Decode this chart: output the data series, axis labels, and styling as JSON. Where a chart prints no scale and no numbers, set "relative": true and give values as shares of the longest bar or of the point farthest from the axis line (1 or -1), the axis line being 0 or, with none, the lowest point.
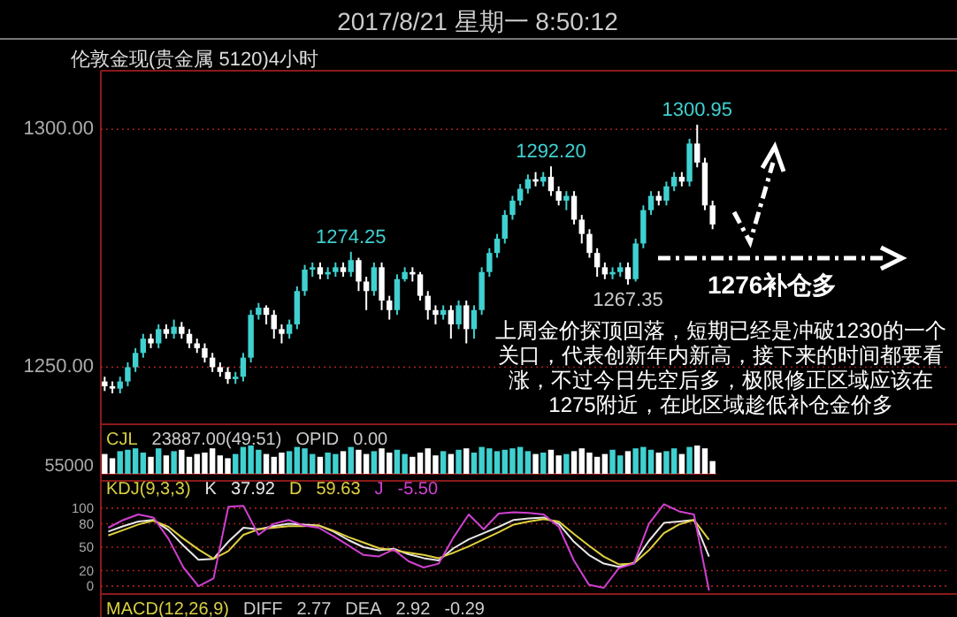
{
  "chart_data": [
    {
      "type": "candlestick",
      "title": "伦敦金现(贵金属 5120)4小时",
      "annotations": [
        "2017/8/21 星期一 8:50:12",
        {
          "text": "1274.25",
          "y": 1274.25
        },
        {
          "text": "1292.20",
          "y": 1292.2
        },
        {
          "text": "1267.35",
          "y": 1267.35
        },
        {
          "text": "1300.95",
          "y": 1300.95
        },
        "1276补仓多",
        "上周金价探顶回落，短期已经是冲破1230的一个关口，代表创新年内新高，接下来的时间都要看涨，不过今日先空后多，极限修正区域应该在1275附近，在此区域趁低补仓金价多"
      ],
      "categories": [
        null,
        null,
        null,
        null,
        null,
        null,
        null,
        null,
        null,
        null,
        null,
        null,
        null,
        null,
        null,
        null,
        null,
        null,
        null,
        null,
        null,
        null,
        null,
        null,
        null,
        null,
        null,
        null,
        null,
        null,
        null,
        null,
        null,
        null,
        null,
        null,
        null,
        null,
        null,
        null,
        null,
        null,
        null,
        null,
        null,
        null,
        null,
        null,
        null,
        null,
        null,
        null,
        null,
        null,
        null,
        null,
        null,
        null,
        null,
        null,
        null,
        null,
        null,
        null,
        null,
        null,
        null,
        null,
        null,
        null,
        null,
        null,
        null,
        null,
        null,
        null,
        null,
        null,
        null,
        null
      ],
      "ohlc": [
        [
          1247,
          1248,
          1245,
          1246
        ],
        [
          1246,
          1247,
          1244.5,
          1245.5
        ],
        [
          1245.5,
          1248,
          1244.5,
          1247
        ],
        [
          1247,
          1251,
          1246,
          1250
        ],
        [
          1250,
          1254,
          1249,
          1253
        ],
        [
          1253,
          1257,
          1252,
          1256
        ],
        [
          1256,
          1257,
          1254,
          1255
        ],
        [
          1255,
          1259,
          1254,
          1258
        ],
        [
          1258,
          1259,
          1256,
          1257
        ],
        [
          1257,
          1260,
          1256,
          1258.5
        ],
        [
          1258.5,
          1259.5,
          1256,
          1257
        ],
        [
          1257,
          1258,
          1254,
          1255
        ],
        [
          1255,
          1256,
          1253,
          1254
        ],
        [
          1254,
          1255,
          1251,
          1252
        ],
        [
          1252,
          1253,
          1249,
          1250
        ],
        [
          1250,
          1251,
          1248,
          1249
        ],
        [
          1249,
          1250,
          1246.5,
          1247.5
        ],
        [
          1247.5,
          1249,
          1246.5,
          1248
        ],
        [
          1248,
          1253,
          1247,
          1252
        ],
        [
          1252,
          1262,
          1251,
          1261
        ],
        [
          1261,
          1263.5,
          1260,
          1262.5
        ],
        [
          1262.5,
          1263,
          1259,
          1261
        ],
        [
          1261,
          1262,
          1256,
          1258
        ],
        [
          1258,
          1259,
          1255,
          1257
        ],
        [
          1257,
          1260,
          1256,
          1259
        ],
        [
          1259,
          1267,
          1258,
          1266
        ],
        [
          1266,
          1271.5,
          1265,
          1270.5
        ],
        [
          1270.5,
          1272,
          1269,
          1271
        ],
        [
          1271,
          1272,
          1268.5,
          1269.5
        ],
        [
          1269.5,
          1271,
          1268.5,
          1270
        ],
        [
          1270,
          1272,
          1269,
          1271
        ],
        [
          1271,
          1272,
          1269,
          1270
        ],
        [
          1270,
          1274.25,
          1269,
          1272.5
        ],
        [
          1272.5,
          1273,
          1266,
          1268
        ],
        [
          1268,
          1269,
          1262,
          1266
        ],
        [
          1266,
          1272,
          1265,
          1271
        ],
        [
          1271,
          1272,
          1262,
          1264
        ],
        [
          1264,
          1265,
          1260,
          1262
        ],
        [
          1262,
          1269.5,
          1261,
          1268.5
        ],
        [
          1268.5,
          1271,
          1268,
          1270
        ],
        [
          1270,
          1271,
          1268,
          1269.5
        ],
        [
          1269.5,
          1270,
          1264,
          1265
        ],
        [
          1265,
          1266,
          1260,
          1262
        ],
        [
          1262,
          1263,
          1259,
          1261
        ],
        [
          1261,
          1263,
          1260,
          1262
        ],
        [
          1262,
          1263,
          1256,
          1259
        ],
        [
          1259,
          1264,
          1258,
          1263
        ],
        [
          1263,
          1264,
          1255,
          1258
        ],
        [
          1258,
          1263,
          1256,
          1262
        ],
        [
          1262,
          1271,
          1261,
          1270
        ],
        [
          1270,
          1275,
          1269,
          1274
        ],
        [
          1274,
          1278,
          1273,
          1277
        ],
        [
          1277,
          1283,
          1276,
          1282
        ],
        [
          1282,
          1286,
          1281,
          1285
        ],
        [
          1285,
          1288.5,
          1284,
          1287.5
        ],
        [
          1287.5,
          1290.5,
          1286.5,
          1289.5
        ],
        [
          1289.5,
          1291,
          1288,
          1289
        ],
        [
          1289,
          1291,
          1288,
          1290
        ],
        [
          1290,
          1292.2,
          1286,
          1287
        ],
        [
          1287,
          1288,
          1284,
          1285
        ],
        [
          1285,
          1287,
          1283,
          1286
        ],
        [
          1286,
          1287,
          1280,
          1281
        ],
        [
          1281,
          1282,
          1276,
          1278
        ],
        [
          1278,
          1279,
          1273,
          1274
        ],
        [
          1274,
          1275,
          1269,
          1271
        ],
        [
          1271,
          1272,
          1268.5,
          1269.5
        ],
        [
          1269.5,
          1271,
          1268.5,
          1270
        ],
        [
          1270,
          1272,
          1269,
          1271
        ],
        [
          1271,
          1272,
          1267.35,
          1268.5
        ],
        [
          1268.5,
          1277,
          1268,
          1276
        ],
        [
          1276,
          1284,
          1275,
          1283
        ],
        [
          1283,
          1287,
          1282,
          1286
        ],
        [
          1286,
          1287,
          1284,
          1285
        ],
        [
          1285,
          1289,
          1284,
          1288
        ],
        [
          1288,
          1291,
          1287,
          1290
        ],
        [
          1290,
          1291,
          1288,
          1289
        ],
        [
          1289,
          1298,
          1288,
          1297
        ],
        [
          1297,
          1300.95,
          1292,
          1293
        ],
        [
          1293,
          1294,
          1283,
          1284
        ],
        [
          1284,
          1285,
          1279,
          1280
        ]
      ],
      "colors": [
        "#ffffff",
        "#ffffff",
        "#40d0d0",
        "#40d0d0",
        "#40d0d0",
        "#40d0d0",
        "#ffffff",
        "#40d0d0",
        "#ffffff",
        "#40d0d0",
        "#ffffff",
        "#ffffff",
        "#ffffff",
        "#ffffff",
        "#ffffff",
        "#ffffff",
        "#ffffff",
        "#40d0d0",
        "#40d0d0",
        "#40d0d0",
        "#40d0d0",
        "#ffffff",
        "#ffffff",
        "#ffffff",
        "#40d0d0",
        "#40d0d0",
        "#40d0d0",
        "#40d0d0",
        "#ffffff",
        "#40d0d0",
        "#40d0d0",
        "#ffffff",
        "#40d0d0",
        "#ffffff",
        "#ffffff",
        "#40d0d0",
        "#ffffff",
        "#ffffff",
        "#40d0d0",
        "#40d0d0",
        "#ffffff",
        "#ffffff",
        "#ffffff",
        "#ffffff",
        "#40d0d0",
        "#ffffff",
        "#40d0d0",
        "#ffffff",
        "#40d0d0",
        "#40d0d0",
        "#40d0d0",
        "#40d0d0",
        "#40d0d0",
        "#40d0d0",
        "#40d0d0",
        "#40d0d0",
        "#ffffff",
        "#40d0d0",
        "#ffffff",
        "#ffffff",
        "#40d0d0",
        "#ffffff",
        "#ffffff",
        "#ffffff",
        "#ffffff",
        "#ffffff",
        "#40d0d0",
        "#40d0d0",
        "#ffffff",
        "#40d0d0",
        "#40d0d0",
        "#40d0d0",
        "#ffffff",
        "#40d0d0",
        "#40d0d0",
        "#ffffff",
        "#40d0d0",
        "#ffffff",
        "#ffffff",
        "#ffffff"
      ],
      "ylim": [
        1238,
        1312.3
      ],
      "yticks": [
        {
          "value": 1250,
          "label": "1250.00"
        },
        {
          "value": 1300,
          "label": "1300.00"
        }
      ],
      "grid": "y",
      "tick_labels": "y"
    },
    {
      "type": "bar",
      "relative": true,
      "title": "CJL",
      "annotations": [
        "23887.00(49:51)",
        "OPID",
        "0.00",
        "55000"
      ],
      "categories": [
        null,
        null,
        null,
        null,
        null,
        null,
        null,
        null,
        null,
        null,
        null,
        null,
        null,
        null,
        null,
        null,
        null,
        null,
        null,
        null,
        null,
        null,
        null,
        null,
        null,
        null,
        null,
        null,
        null,
        null,
        null,
        null,
        null,
        null,
        null,
        null,
        null,
        null,
        null,
        null,
        null,
        null,
        null,
        null,
        null,
        null,
        null,
        null,
        null,
        null,
        null,
        null,
        null,
        null,
        null,
        null,
        null,
        null,
        null,
        null,
        null,
        null,
        null,
        null,
        null,
        null,
        null,
        null,
        null,
        null,
        null,
        null,
        null,
        null,
        null,
        null,
        null,
        null,
        null,
        null
      ],
      "values": [
        0.7,
        0.55,
        0.8,
        0.85,
        0.9,
        0.75,
        0.6,
        0.9,
        0.65,
        0.8,
        0.85,
        0.6,
        0.7,
        0.75,
        0.9,
        0.65,
        0.55,
        0.7,
        0.95,
        1.0,
        0.85,
        0.7,
        0.6,
        0.75,
        0.8,
        0.95,
        0.9,
        0.7,
        0.6,
        0.75,
        0.7,
        0.8,
        0.95,
        0.85,
        0.7,
        0.8,
        0.9,
        0.75,
        0.85,
        0.7,
        0.6,
        0.75,
        0.9,
        0.65,
        0.8,
        0.7,
        0.85,
        0.9,
        0.75,
        0.95,
        0.9,
        0.8,
        0.85,
        0.9,
        0.95,
        0.8,
        0.7,
        0.75,
        0.85,
        0.65,
        0.7,
        0.8,
        0.9,
        0.75,
        0.6,
        0.7,
        0.85,
        0.65,
        0.8,
        0.9,
        0.95,
        0.85,
        0.75,
        0.8,
        0.9,
        0.7,
        0.95,
        1.0,
        0.9,
        0.45
      ],
      "colors": [
        "#ffffff",
        "#ffffff",
        "#40d0d0",
        "#40d0d0",
        "#40d0d0",
        "#40d0d0",
        "#ffffff",
        "#40d0d0",
        "#ffffff",
        "#40d0d0",
        "#ffffff",
        "#ffffff",
        "#ffffff",
        "#ffffff",
        "#ffffff",
        "#ffffff",
        "#ffffff",
        "#40d0d0",
        "#40d0d0",
        "#40d0d0",
        "#40d0d0",
        "#ffffff",
        "#ffffff",
        "#ffffff",
        "#40d0d0",
        "#40d0d0",
        "#40d0d0",
        "#40d0d0",
        "#ffffff",
        "#40d0d0",
        "#40d0d0",
        "#ffffff",
        "#40d0d0",
        "#ffffff",
        "#ffffff",
        "#40d0d0",
        "#ffffff",
        "#ffffff",
        "#40d0d0",
        "#40d0d0",
        "#ffffff",
        "#ffffff",
        "#ffffff",
        "#ffffff",
        "#40d0d0",
        "#ffffff",
        "#40d0d0",
        "#ffffff",
        "#40d0d0",
        "#40d0d0",
        "#40d0d0",
        "#40d0d0",
        "#40d0d0",
        "#40d0d0",
        "#40d0d0",
        "#40d0d0",
        "#ffffff",
        "#40d0d0",
        "#ffffff",
        "#ffffff",
        "#40d0d0",
        "#ffffff",
        "#ffffff",
        "#ffffff",
        "#ffffff",
        "#ffffff",
        "#40d0d0",
        "#40d0d0",
        "#ffffff",
        "#40d0d0",
        "#40d0d0",
        "#40d0d0",
        "#ffffff",
        "#40d0d0",
        "#40d0d0",
        "#ffffff",
        "#40d0d0",
        "#ffffff",
        "#ffffff",
        "#ffffff"
      ],
      "tick_labels": false
    },
    {
      "type": "line",
      "title": "KDJ(9,3,3)",
      "annotations": [
        "37.92",
        "59.63",
        "-5.50"
      ],
      "ylim": [
        -10,
        135
      ],
      "yticks": [
        0,
        20,
        50,
        80,
        100
      ],
      "grid": "y",
      "tick_labels": "y",
      "categories": [
        null,
        null,
        null,
        null,
        null,
        null,
        null,
        null,
        null,
        null,
        null,
        null,
        null,
        null,
        null,
        null,
        null,
        null,
        null,
        null,
        null,
        null,
        null,
        null,
        null,
        null,
        null,
        null,
        null,
        null,
        null,
        null,
        null,
        null,
        null,
        null,
        null,
        null,
        null,
        null,
        null
      ],
      "series": [
        {
          "name": "K",
          "color": "#e8e8e8",
          "values": [
            70,
            77,
            83,
            85,
            72,
            52,
            34,
            35,
            57,
            75,
            73,
            77,
            80,
            79,
            78,
            70,
            59,
            50,
            46,
            48,
            41,
            36,
            33,
            49,
            60,
            68,
            76,
            85,
            87,
            88,
            80,
            57,
            40,
            29,
            25,
            30,
            58,
            81,
            83,
            85,
            37.92
          ]
        },
        {
          "name": "D",
          "color": "#e0d040",
          "values": [
            65,
            72,
            79,
            84,
            76,
            61,
            47,
            35,
            45,
            66,
            73,
            75,
            77,
            77,
            78,
            71,
            63,
            56,
            49,
            46,
            43,
            40,
            36,
            43,
            51,
            60,
            69,
            79,
            83,
            86,
            83,
            67,
            52,
            38,
            28,
            29,
            46,
            68,
            79,
            85,
            59.63
          ]
        },
        {
          "name": "J",
          "color": "#d040d0",
          "values": [
            75,
            85,
            92,
            88,
            61,
            24,
            0,
            10,
            102,
            103,
            66,
            80,
            85,
            78,
            75,
            64,
            52,
            40,
            38,
            47,
            32,
            24,
            29,
            63,
            92,
            73,
            93,
            95,
            94,
            92,
            76,
            33,
            2,
            -2,
            23,
            29,
            80,
            105,
            96,
            92,
            -5.5
          ]
        }
      ]
    },
    {
      "type": "other",
      "title": "MACD(12,26,9)",
      "annotations": [
        "DIFF",
        "2.77",
        "DEA",
        "2.92",
        "-0.29"
      ]
    }
  ]
}
